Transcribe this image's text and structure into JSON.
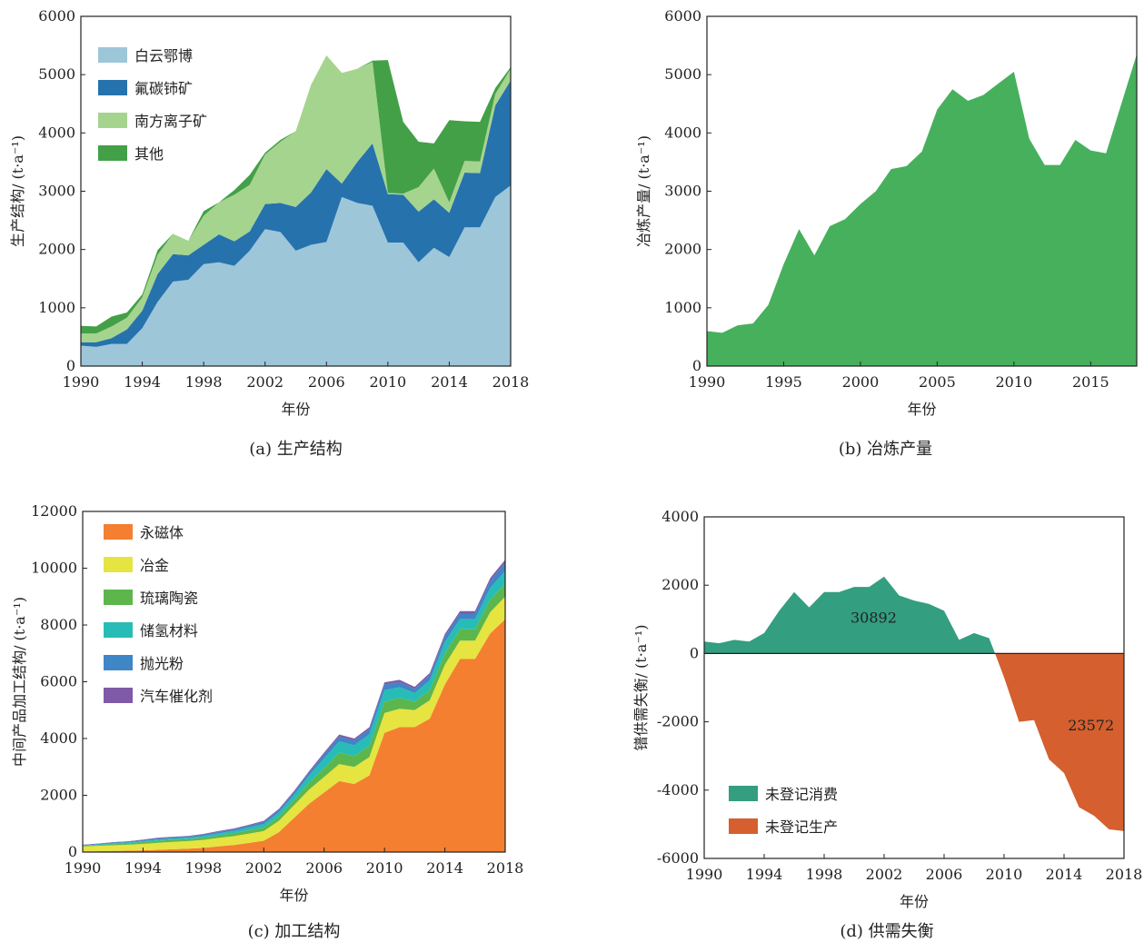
{
  "chart_data": [
    {
      "id": "a",
      "type": "area",
      "stacked": true,
      "caption": "(a) 生产结构",
      "xlabel": "年份",
      "ylabel": "生产结构/ (t·a⁻¹)",
      "xlim": [
        1990,
        2018
      ],
      "ylim": [
        0,
        6000
      ],
      "xticks": [
        1990,
        1994,
        1998,
        2002,
        2006,
        2010,
        2014,
        2018
      ],
      "yticks": [
        0,
        1000,
        2000,
        3000,
        4000,
        5000,
        6000
      ],
      "legend": "top-left",
      "x": [
        1990,
        1991,
        1992,
        1993,
        1994,
        1995,
        1996,
        1997,
        1998,
        1999,
        2000,
        2001,
        2002,
        2003,
        2004,
        2005,
        2006,
        2007,
        2008,
        2009,
        2010,
        2011,
        2012,
        2013,
        2014,
        2015,
        2016,
        2017,
        2018
      ],
      "series": [
        {
          "name": "白云鄂博",
          "color": "#9dc6d9",
          "values": [
            350,
            330,
            380,
            380,
            650,
            1100,
            1450,
            1480,
            1750,
            1780,
            1720,
            1980,
            2350,
            2300,
            1980,
            2080,
            2130,
            2900,
            2800,
            2750,
            2120,
            2120,
            1780,
            2030,
            1870,
            2380,
            2380,
            2900,
            3100
          ]
        },
        {
          "name": "氟碳铈矿",
          "color": "#2672ad",
          "values": [
            60,
            80,
            100,
            250,
            300,
            480,
            470,
            420,
            330,
            480,
            420,
            330,
            430,
            500,
            750,
            900,
            1250,
            230,
            700,
            1070,
            830,
            820,
            870,
            830,
            760,
            940,
            930,
            1570,
            1800
          ]
        },
        {
          "name": "南方离子矿",
          "color": "#a5d48e",
          "values": [
            150,
            150,
            200,
            200,
            230,
            330,
            350,
            250,
            500,
            550,
            800,
            800,
            850,
            1050,
            1300,
            1850,
            1950,
            1900,
            1600,
            1400,
            20,
            20,
            420,
            530,
            180,
            200,
            200,
            200,
            200
          ]
        },
        {
          "name": "其他",
          "color": "#43a047",
          "values": [
            130,
            120,
            170,
            90,
            50,
            80,
            0,
            0,
            80,
            0,
            80,
            170,
            30,
            30,
            0,
            0,
            0,
            0,
            0,
            20,
            2280,
            1230,
            780,
            430,
            1410,
            680,
            680,
            100,
            30
          ]
        }
      ]
    },
    {
      "id": "b",
      "type": "area",
      "caption": "(b) 冶炼产量",
      "xlabel": "年份",
      "ylabel": "冶炼产量/ (t·a⁻¹)",
      "xlim": [
        1990,
        2018
      ],
      "ylim": [
        0,
        6000
      ],
      "xticks": [
        1990,
        1995,
        2000,
        2005,
        2010,
        2015
      ],
      "yticks": [
        0,
        1000,
        2000,
        3000,
        4000,
        5000,
        6000
      ],
      "x": [
        1990,
        1991,
        1992,
        1993,
        1994,
        1995,
        1996,
        1997,
        1998,
        1999,
        2000,
        2001,
        2002,
        2003,
        2004,
        2005,
        2006,
        2007,
        2008,
        2009,
        2010,
        2011,
        2012,
        2013,
        2014,
        2015,
        2016,
        2017,
        2018
      ],
      "series": [
        {
          "color": "#46b05c",
          "values": [
            600,
            570,
            700,
            730,
            1050,
            1750,
            2350,
            1900,
            2400,
            2520,
            2780,
            3000,
            3380,
            3430,
            3680,
            4400,
            4750,
            4550,
            4650,
            4850,
            5050,
            3900,
            3450,
            3450,
            3880,
            3700,
            3650,
            4500,
            5350
          ]
        }
      ]
    },
    {
      "id": "c",
      "type": "area",
      "stacked": true,
      "caption": "(c) 加工结构",
      "xlabel": "年份",
      "ylabel": "中间产品加工结构/ (t·a⁻¹)",
      "xlim": [
        1990,
        2018
      ],
      "ylim": [
        0,
        12000
      ],
      "xticks": [
        1990,
        1994,
        1998,
        2002,
        2006,
        2010,
        2014,
        2018
      ],
      "yticks": [
        0,
        2000,
        4000,
        6000,
        8000,
        10000,
        12000
      ],
      "legend": "top-left",
      "x": [
        1990,
        1991,
        1992,
        1993,
        1994,
        1995,
        1996,
        1997,
        1998,
        1999,
        2000,
        2001,
        2002,
        2003,
        2004,
        2005,
        2006,
        2007,
        2008,
        2009,
        2010,
        2011,
        2012,
        2013,
        2014,
        2015,
        2016,
        2017,
        2018
      ],
      "series": [
        {
          "name": "永磁体",
          "color": "#f47f30",
          "values": [
            20,
            30,
            40,
            50,
            60,
            80,
            100,
            120,
            150,
            200,
            250,
            320,
            400,
            700,
            1200,
            1700,
            2100,
            2500,
            2400,
            2700,
            4200,
            4400,
            4400,
            4700,
            5900,
            6800,
            6800,
            7700,
            8200
          ]
        },
        {
          "name": "冶金",
          "color": "#e5e441",
          "values": [
            180,
            190,
            200,
            210,
            230,
            250,
            260,
            270,
            280,
            300,
            310,
            330,
            340,
            400,
            450,
            500,
            550,
            600,
            600,
            650,
            700,
            650,
            600,
            650,
            700,
            650,
            650,
            750,
            800
          ]
        },
        {
          "name": "琉璃陶瓷",
          "color": "#5db64b",
          "values": [
            20,
            30,
            40,
            50,
            60,
            70,
            70,
            70,
            80,
            90,
            100,
            120,
            130,
            150,
            180,
            250,
            300,
            400,
            380,
            400,
            400,
            380,
            300,
            350,
            400,
            400,
            400,
            450,
            450
          ]
        },
        {
          "name": "储氢材料",
          "color": "#27bdb6",
          "values": [
            10,
            20,
            30,
            30,
            40,
            50,
            50,
            50,
            60,
            70,
            80,
            100,
            120,
            150,
            180,
            250,
            350,
            400,
            380,
            400,
            400,
            380,
            300,
            350,
            400,
            350,
            350,
            400,
            450
          ]
        },
        {
          "name": "抛光粉",
          "color": "#3e86c6",
          "values": [
            20,
            20,
            30,
            30,
            30,
            40,
            40,
            40,
            50,
            50,
            60,
            60,
            70,
            80,
            90,
            100,
            150,
            170,
            170,
            180,
            200,
            180,
            150,
            180,
            200,
            200,
            200,
            250,
            300
          ]
        },
        {
          "name": "汽车催化剂",
          "color": "#7f5aa8",
          "values": [
            10,
            10,
            10,
            10,
            20,
            20,
            20,
            20,
            20,
            30,
            30,
            30,
            40,
            40,
            50,
            50,
            60,
            70,
            70,
            70,
            80,
            80,
            70,
            80,
            80,
            90,
            90,
            100,
            100
          ]
        }
      ]
    },
    {
      "id": "d",
      "type": "area",
      "caption": "(d) 供需失衡",
      "xlabel": "年份",
      "ylabel": "镨供需失衡/ (t·a⁻¹)",
      "xlim": [
        1990,
        2018
      ],
      "ylim": [
        -6000,
        4000
      ],
      "xticks": [
        1990,
        1994,
        1998,
        2002,
        2006,
        2010,
        2014,
        2018
      ],
      "yticks": [
        -6000,
        -4000,
        -2000,
        0,
        2000,
        4000
      ],
      "legend": "bottom-left",
      "x": [
        1990,
        1991,
        1992,
        1993,
        1994,
        1995,
        1996,
        1997,
        1998,
        1999,
        2000,
        2001,
        2002,
        2003,
        2004,
        2005,
        2006,
        2007,
        2008,
        2009,
        2009.4,
        2010,
        2011,
        2012,
        2013,
        2014,
        2015,
        2016,
        2017,
        2018
      ],
      "values": [
        350,
        300,
        400,
        350,
        600,
        1250,
        1800,
        1350,
        1800,
        1800,
        1950,
        1950,
        2250,
        1700,
        1550,
        1450,
        1250,
        400,
        600,
        450,
        0,
        -700,
        -2000,
        -1950,
        -3100,
        -3500,
        -4500,
        -4750,
        -5150,
        -5200
      ],
      "series": [
        {
          "name": "未登记消费",
          "color": "#339e80",
          "total": "30892"
        },
        {
          "name": "未登记生产",
          "color": "#d55f2e",
          "total": "23572"
        }
      ]
    }
  ]
}
